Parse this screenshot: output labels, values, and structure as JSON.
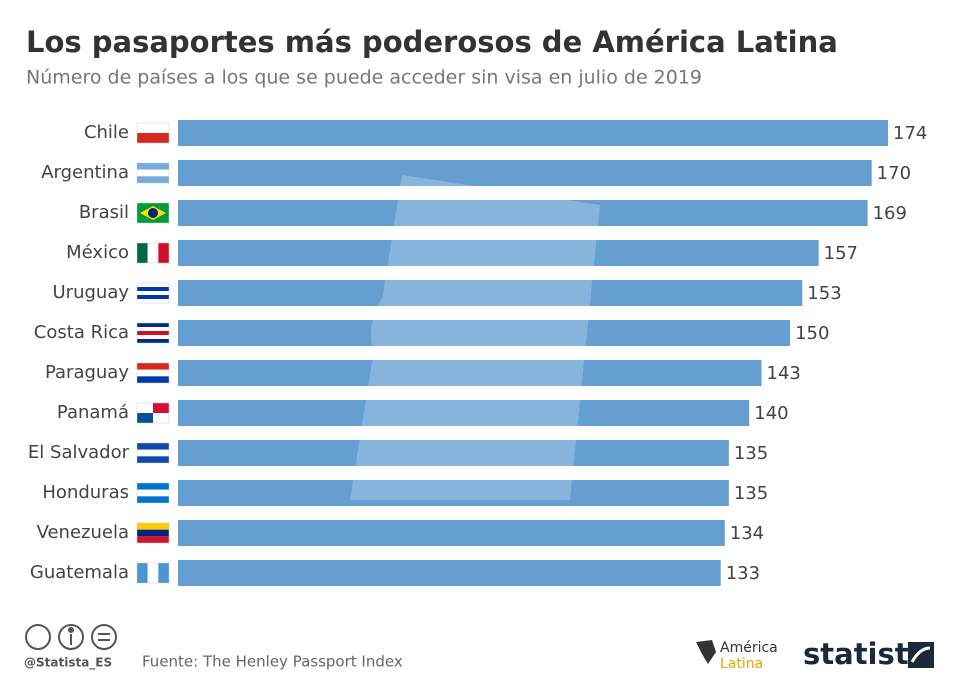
{
  "chart_data": {
    "type": "bar",
    "orientation": "horizontal",
    "title": "Los pasaportes más poderosos de América Latina",
    "subtitle": "Número de países a los que se puede acceder sin visa en julio de 2019",
    "categories": [
      "Chile",
      "Argentina",
      "Brasil",
      "México",
      "Uruguay",
      "Costa Rica",
      "Paraguay",
      "Panamá",
      "El Salvador",
      "Honduras",
      "Venezuela",
      "Guatemala"
    ],
    "values": [
      174,
      170,
      169,
      157,
      153,
      150,
      143,
      140,
      135,
      135,
      134,
      133
    ],
    "color": "#659fd2",
    "source": "Fuente: The Henley Passport Index",
    "credit": "@Statista_ES",
    "logo_line1": "América",
    "logo_line2": "Latina",
    "brand": "statista"
  }
}
